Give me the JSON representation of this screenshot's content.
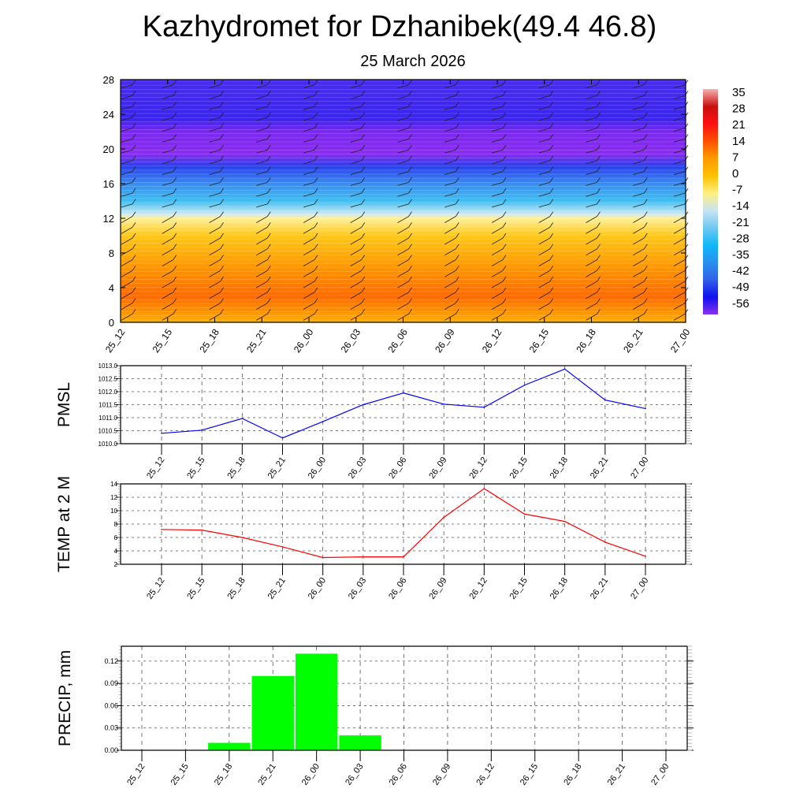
{
  "title": "Kazhydromet for Dzhanibek(49.4 46.8)",
  "subtitle": "25 March 2026",
  "chart_data": [
    {
      "type": "heatmap",
      "name": "temperature-wind cross-section",
      "ylim": [
        0,
        28
      ],
      "yticks": [
        "0",
        "4",
        "8",
        "12",
        "16",
        "20",
        "24",
        "28"
      ],
      "x": [
        "25_12",
        "25_15",
        "25_18",
        "25_21",
        "26_00",
        "26_03",
        "26_06",
        "26_09",
        "26_12",
        "26_15",
        "26_18",
        "26_21",
        "27_00"
      ],
      "colorbar": {
        "labels": [
          "35",
          "28",
          "21",
          "14",
          "7",
          "0",
          "-7",
          "-14",
          "-21",
          "-28",
          "-35",
          "-42",
          "-49",
          "-56"
        ],
        "colors": [
          "#f8b0b0",
          "#c81010",
          "#ff1010",
          "#ff5000",
          "#ff9a00",
          "#ffc000",
          "#fff080",
          "#c8e4f4",
          "#70c8f0",
          "#10b8f8",
          "#2890f0",
          "#3060e8",
          "#1010f0",
          "#8830f0"
        ]
      },
      "bands": [
        {
          "level": 0,
          "color": "#ffb000"
        },
        {
          "level": 3,
          "color": "#ff6a00"
        },
        {
          "level": 6,
          "color": "#ff9200"
        },
        {
          "level": 10,
          "color": "#ffc818"
        },
        {
          "level": 12,
          "color": "#fff09a"
        },
        {
          "level": 12.5,
          "color": "#cfe9f4"
        },
        {
          "level": 14,
          "color": "#40bff2"
        },
        {
          "level": 16,
          "color": "#3a8cf0"
        },
        {
          "level": 18,
          "color": "#2a40ec"
        },
        {
          "level": 19.5,
          "color": "#8a2cf0"
        },
        {
          "level": 22,
          "color": "#7a28f0"
        },
        {
          "level": 23.5,
          "color": "#3a24ee"
        },
        {
          "level": 28,
          "color": "#4a2cf0"
        }
      ]
    },
    {
      "type": "line",
      "ylabel": "PMSL",
      "x": [
        "25_12",
        "25_15",
        "25_18",
        "25_21",
        "26_00",
        "26_03",
        "26_06",
        "26_09",
        "26_12",
        "26_15",
        "26_18",
        "26_21",
        "27_00"
      ],
      "values": [
        1010.4,
        1010.52,
        1010.97,
        1010.22,
        1010.85,
        1011.5,
        1011.95,
        1011.52,
        1011.4,
        1012.25,
        1012.87,
        1011.68,
        1011.35
      ],
      "ylim": [
        1010.0,
        1013.0
      ],
      "yticks": [
        "1010.0",
        "1010.5",
        "1011.0",
        "1011.5",
        "1012.0",
        "1012.5",
        "1013.0"
      ],
      "color": "#0000ff",
      "grid": true
    },
    {
      "type": "line",
      "ylabel": "TEMP at 2 M",
      "x": [
        "25_12",
        "25_15",
        "25_18",
        "25_21",
        "26_00",
        "26_03",
        "26_06",
        "26_09",
        "26_12",
        "26_15",
        "26_18",
        "26_21",
        "27_00"
      ],
      "values": [
        7.2,
        7.1,
        6.0,
        4.6,
        3.0,
        3.1,
        3.1,
        9.0,
        13.3,
        9.5,
        8.4,
        5.3,
        3.2
      ],
      "ylim": [
        2,
        14
      ],
      "yticks": [
        "2",
        "4",
        "6",
        "8",
        "10",
        "12",
        "14"
      ],
      "color": "#ff0000",
      "grid": true
    },
    {
      "type": "bar",
      "ylabel": "PRECIP, mm",
      "x": [
        "25_12",
        "25_15",
        "25_18",
        "25_21",
        "26_00",
        "26_03",
        "26_06",
        "26_09",
        "26_12",
        "26_15",
        "26_18",
        "26_21",
        "27_00"
      ],
      "values": [
        0,
        0,
        0.01,
        0.1,
        0.13,
        0.02,
        0,
        0,
        0,
        0,
        0,
        0,
        0
      ],
      "ylim": [
        0,
        0.14
      ],
      "yticks": [
        "0.00",
        "0.03",
        "0.06",
        "0.09",
        "0.12"
      ],
      "color": "#00ff00",
      "grid": true
    }
  ]
}
